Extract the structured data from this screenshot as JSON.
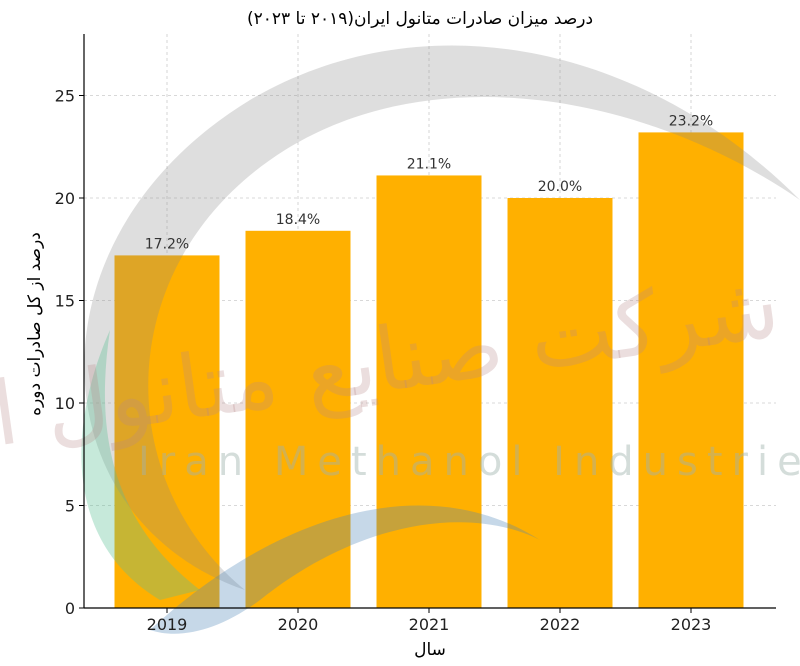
{
  "chart_data": {
    "type": "bar",
    "title": "درصد میزان صادرات متانول ایران(۲۰۱۹ تا ۲۰۲۳)",
    "xlabel": "سال",
    "ylabel": "درصد از کل صادرات دوره",
    "categories": [
      "2019",
      "2020",
      "2021",
      "2022",
      "2023"
    ],
    "values": [
      17.2,
      18.4,
      21.1,
      20.0,
      23.2
    ],
    "data_labels": [
      "17.2%",
      "18.4%",
      "21.1%",
      "20.0%",
      "23.2%"
    ],
    "ylim": [
      0,
      28
    ],
    "yticks": [
      0,
      5,
      10,
      15,
      20,
      25
    ],
    "grid": true,
    "bar_color": "#FFB000"
  },
  "watermark": {
    "text_en": "Iran Methanol Industries Co",
    "text_fa": "شرکت صنایع متانول ایران"
  }
}
